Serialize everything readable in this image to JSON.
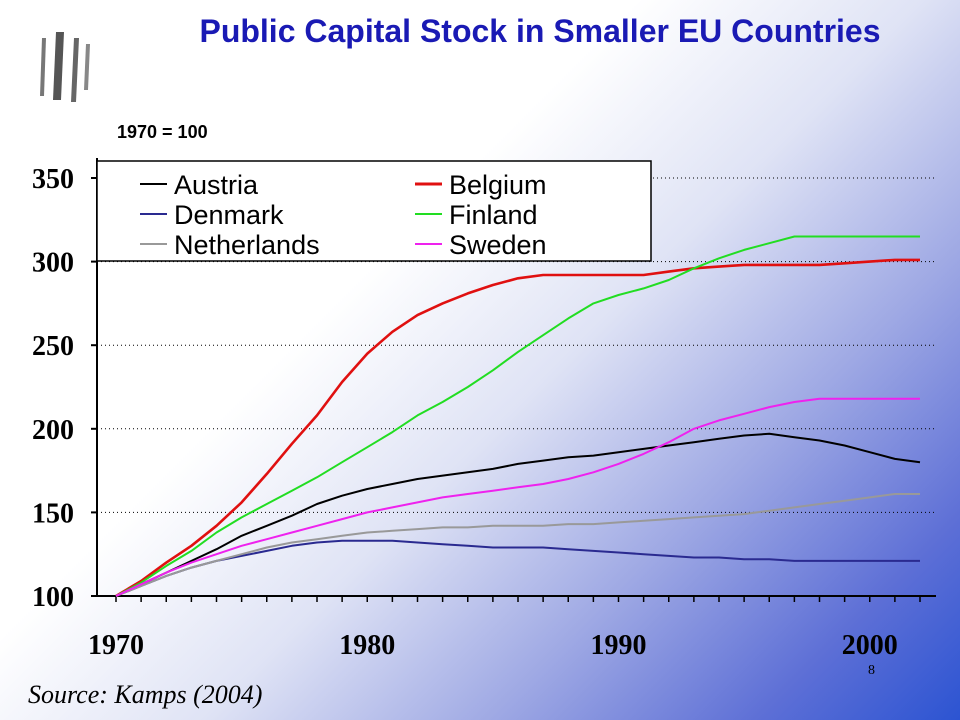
{
  "title": "Public Capital Stock in Smaller EU Countries",
  "subtitle": "1970 = 100",
  "source": "Source: Kamps (2004)",
  "page_number": "8",
  "colors": {
    "Austria": "#000000",
    "Belgium": "#e01010",
    "Denmark": "#2a2a90",
    "Finland": "#22dd22",
    "Netherlands": "#999999",
    "Sweden": "#ee22ee"
  },
  "chart_data": {
    "type": "line",
    "title": "Public Capital Stock in Smaller EU Countries",
    "subtitle": "1970 = 100",
    "xlim": [
      1970,
      2002
    ],
    "ylim": [
      100,
      350
    ],
    "x_ticks": [
      1970,
      1980,
      1990,
      2000
    ],
    "y_ticks": [
      100,
      150,
      200,
      250,
      300,
      350
    ],
    "grid": "horizontal dotted",
    "legend_position": "top-left",
    "x": [
      1970,
      1971,
      1972,
      1973,
      1974,
      1975,
      1976,
      1977,
      1978,
      1979,
      1980,
      1981,
      1982,
      1983,
      1984,
      1985,
      1986,
      1987,
      1988,
      1989,
      1990,
      1991,
      1992,
      1993,
      1994,
      1995,
      1996,
      1997,
      1998,
      1999,
      2000,
      2001,
      2002
    ],
    "series": [
      {
        "name": "Austria",
        "values": [
          100,
          107,
          114,
          121,
          128,
          136,
          142,
          148,
          155,
          160,
          164,
          167,
          170,
          172,
          174,
          176,
          179,
          181,
          183,
          184,
          186,
          188,
          190,
          192,
          194,
          196,
          197,
          195,
          193,
          190,
          186,
          182,
          180
        ]
      },
      {
        "name": "Belgium",
        "values": [
          100,
          109,
          120,
          130,
          142,
          156,
          173,
          191,
          208,
          228,
          245,
          258,
          268,
          275,
          281,
          286,
          290,
          292,
          292,
          292,
          292,
          292,
          294,
          296,
          297,
          298,
          298,
          298,
          298,
          299,
          300,
          301,
          301
        ]
      },
      {
        "name": "Denmark",
        "values": [
          100,
          106,
          112,
          117,
          121,
          124,
          127,
          130,
          132,
          133,
          133,
          133,
          132,
          131,
          130,
          129,
          129,
          129,
          128,
          127,
          126,
          125,
          124,
          123,
          123,
          122,
          122,
          121,
          121,
          121,
          121,
          121,
          121
        ]
      },
      {
        "name": "Finland",
        "values": [
          100,
          108,
          118,
          127,
          138,
          147,
          155,
          163,
          171,
          180,
          189,
          198,
          208,
          216,
          225,
          235,
          246,
          256,
          266,
          275,
          280,
          284,
          289,
          296,
          302,
          307,
          311,
          315,
          315,
          315,
          315,
          315,
          315
        ]
      },
      {
        "name": "Netherlands",
        "values": [
          100,
          106,
          112,
          117,
          121,
          125,
          129,
          132,
          134,
          136,
          138,
          139,
          140,
          141,
          141,
          142,
          142,
          142,
          143,
          143,
          144,
          145,
          146,
          147,
          148,
          149,
          151,
          153,
          155,
          157,
          159,
          161,
          161
        ]
      },
      {
        "name": "Sweden",
        "values": [
          100,
          107,
          114,
          120,
          125,
          130,
          134,
          138,
          142,
          146,
          150,
          153,
          156,
          159,
          161,
          163,
          165,
          167,
          170,
          174,
          179,
          185,
          192,
          200,
          205,
          209,
          213,
          216,
          218,
          218,
          218,
          218,
          218
        ]
      }
    ]
  }
}
